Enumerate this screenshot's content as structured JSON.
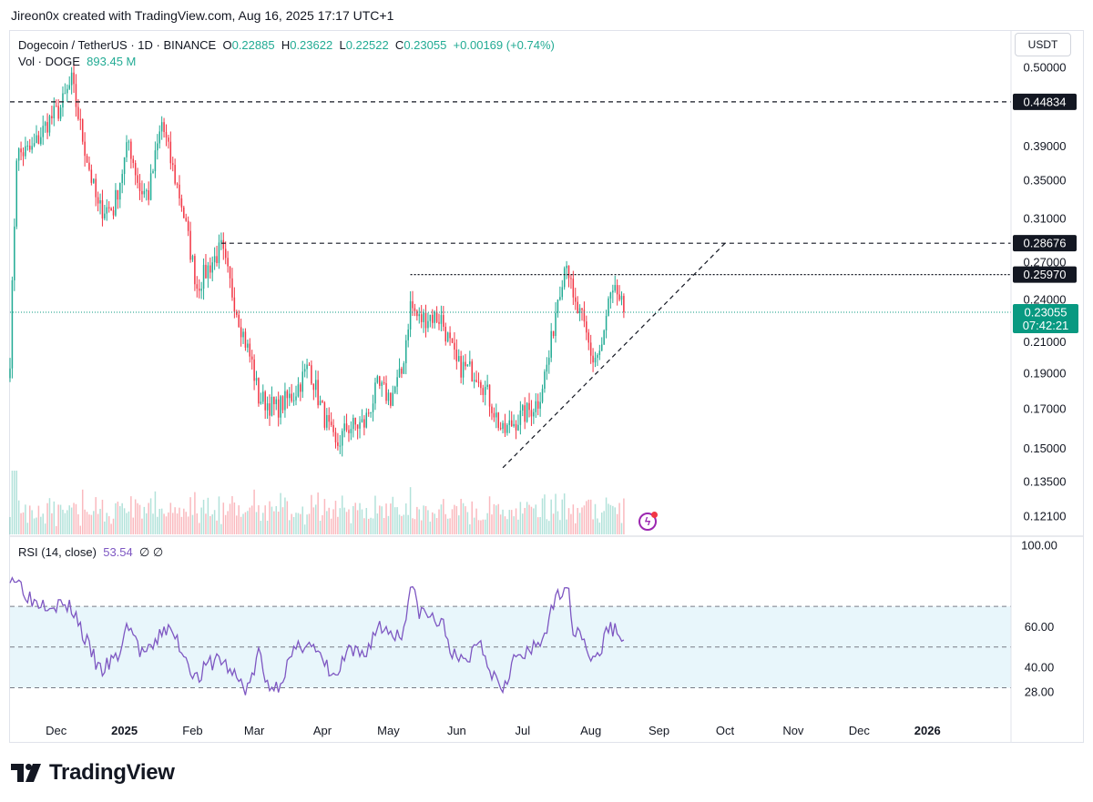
{
  "caption": "Jireon0x created with TradingView.com, Aug 16, 2025 17:17 UTC+1",
  "legend": {
    "symbol": "Dogecoin / TetherUS · 1D · BINANCE",
    "o_label": "O",
    "o": "0.22885",
    "h_label": "H",
    "h": "0.23622",
    "l_label": "L",
    "l": "0.22522",
    "c_label": "C",
    "c": "0.23055",
    "change": "+0.00169 (+0.74%)",
    "vol_label": "Vol · DOGE",
    "vol": "893.45 M"
  },
  "currency_button": "USDT",
  "rsi_legend": {
    "label": "RSI (14, close)",
    "value": "53.54",
    "icons": "∅ ∅"
  },
  "brand": "TradingView",
  "colors": {
    "up": "#22ab94",
    "down": "#f23645",
    "rsi": "#7e57c2",
    "rsi_band": "#e8f6fb",
    "last_price": "#089981",
    "level_tag": "#131722"
  },
  "chart_data": [
    {
      "type": "candlestick",
      "title": "Dogecoin / TetherUS · 1D · BINANCE",
      "y_scale": "log",
      "y_ticks": [
        "0.50000",
        "0.39000",
        "0.35000",
        "0.31000",
        "0.27000",
        "0.24000",
        "0.21000",
        "0.19000",
        "0.17000",
        "0.15000",
        "0.13500",
        "0.12100"
      ],
      "x_ticks": [
        "Dec",
        "2025",
        "Feb",
        "Mar",
        "Apr",
        "May",
        "Jun",
        "Jul",
        "Aug",
        "Sep",
        "Oct",
        "Nov",
        "Dec",
        "2026"
      ],
      "x_tick_dates": [
        "2024-12-01",
        "2025-01-01",
        "2025-02-01",
        "2025-03-01",
        "2025-04-01",
        "2025-05-01",
        "2025-06-01",
        "2025-07-01",
        "2025-08-01",
        "2025-09-01",
        "2025-10-01",
        "2025-11-01",
        "2025-12-01",
        "2026-01-01"
      ],
      "x_range": [
        "2024-11-10",
        "2026-02-08"
      ],
      "last_price": {
        "value": "0.23055",
        "countdown": "07:42:21"
      },
      "price_anchors": [
        [
          "2024-11-10",
          0.2
        ],
        [
          "2024-11-13",
          0.38
        ],
        [
          "2024-11-20",
          0.385
        ],
        [
          "2024-11-27",
          0.42
        ],
        [
          "2024-12-03",
          0.44
        ],
        [
          "2024-12-08",
          0.478
        ],
        [
          "2024-12-13",
          0.4
        ],
        [
          "2024-12-20",
          0.32
        ],
        [
          "2024-12-27",
          0.32
        ],
        [
          "2025-01-03",
          0.395
        ],
        [
          "2025-01-08",
          0.34
        ],
        [
          "2025-01-12",
          0.335
        ],
        [
          "2025-01-18",
          0.42
        ],
        [
          "2025-01-22",
          0.372
        ],
        [
          "2025-01-27",
          0.325
        ],
        [
          "2025-02-03",
          0.25
        ],
        [
          "2025-02-09",
          0.268
        ],
        [
          "2025-02-14",
          0.282
        ],
        [
          "2025-02-18",
          0.252
        ],
        [
          "2025-02-24",
          0.215
        ],
        [
          "2025-02-28",
          0.196
        ],
        [
          "2025-03-03",
          0.176
        ],
        [
          "2025-03-11",
          0.17
        ],
        [
          "2025-03-19",
          0.178
        ],
        [
          "2025-03-26",
          0.195
        ],
        [
          "2025-03-31",
          0.172
        ],
        [
          "2025-04-07",
          0.15
        ],
        [
          "2025-04-12",
          0.16
        ],
        [
          "2025-04-20",
          0.162
        ],
        [
          "2025-04-26",
          0.182
        ],
        [
          "2025-05-02",
          0.176
        ],
        [
          "2025-05-07",
          0.19
        ],
        [
          "2025-05-11",
          0.236
        ],
        [
          "2025-05-15",
          0.225
        ],
        [
          "2025-05-20",
          0.228
        ],
        [
          "2025-05-25",
          0.226
        ],
        [
          "2025-06-01",
          0.195
        ],
        [
          "2025-06-07",
          0.192
        ],
        [
          "2025-06-11",
          0.19
        ],
        [
          "2025-06-17",
          0.172
        ],
        [
          "2025-06-22",
          0.157
        ],
        [
          "2025-06-26",
          0.162
        ],
        [
          "2025-07-03",
          0.168
        ],
        [
          "2025-07-08",
          0.174
        ],
        [
          "2025-07-13",
          0.2
        ],
        [
          "2025-07-17",
          0.243
        ],
        [
          "2025-07-21",
          0.275
        ],
        [
          "2025-07-24",
          0.237
        ],
        [
          "2025-07-28",
          0.225
        ],
        [
          "2025-08-02",
          0.198
        ],
        [
          "2025-08-06",
          0.205
        ],
        [
          "2025-08-09",
          0.237
        ],
        [
          "2025-08-13",
          0.245
        ],
        [
          "2025-08-16",
          0.2305
        ]
      ],
      "horizontal_levels": [
        {
          "price": 0.44834,
          "label": "0.44834",
          "from": "2024-11-10",
          "style": "dashed"
        },
        {
          "price": 0.28676,
          "label": "0.28676",
          "from": "2025-02-14",
          "style": "dashed"
        },
        {
          "price": 0.2597,
          "label": "0.25970",
          "from": "2025-05-11",
          "style": "dotted"
        }
      ],
      "trendline": {
        "from": [
          "2025-06-22",
          0.141
        ],
        "to": [
          "2025-10-01",
          0.28676
        ]
      },
      "volume": {
        "label": "Vol · DOGE",
        "last": "893.45 M"
      }
    },
    {
      "type": "line",
      "title": "RSI (14, close)",
      "value": "53.54",
      "y_ticks": [
        "100.00",
        "60.00",
        "40.00",
        "28.00"
      ],
      "bands": {
        "upper": 70,
        "middle": 50,
        "lower": 30
      },
      "anchors": [
        [
          "2024-11-10",
          86
        ],
        [
          "2024-11-14",
          82
        ],
        [
          "2024-11-20",
          73
        ],
        [
          "2024-11-28",
          72
        ],
        [
          "2024-12-05",
          70
        ],
        [
          "2024-12-09",
          68
        ],
        [
          "2024-12-14",
          54
        ],
        [
          "2024-12-21",
          38
        ],
        [
          "2024-12-29",
          45
        ],
        [
          "2025-01-03",
          62
        ],
        [
          "2025-01-08",
          48
        ],
        [
          "2025-01-13",
          47
        ],
        [
          "2025-01-19",
          60
        ],
        [
          "2025-01-24",
          55
        ],
        [
          "2025-01-29",
          45
        ],
        [
          "2025-02-03",
          34
        ],
        [
          "2025-02-08",
          41
        ],
        [
          "2025-02-13",
          45
        ],
        [
          "2025-02-19",
          37
        ],
        [
          "2025-02-25",
          30
        ],
        [
          "2025-02-28",
          34
        ],
        [
          "2025-03-03",
          48
        ],
        [
          "2025-03-06",
          33
        ],
        [
          "2025-03-11",
          30
        ],
        [
          "2025-03-18",
          45
        ],
        [
          "2025-03-25",
          54
        ],
        [
          "2025-03-31",
          44
        ],
        [
          "2025-04-07",
          34
        ],
        [
          "2025-04-12",
          47
        ],
        [
          "2025-04-20",
          46
        ],
        [
          "2025-04-26",
          60
        ],
        [
          "2025-05-02",
          58
        ],
        [
          "2025-05-07",
          55
        ],
        [
          "2025-05-11",
          80
        ],
        [
          "2025-05-15",
          68
        ],
        [
          "2025-05-21",
          64
        ],
        [
          "2025-05-26",
          60
        ],
        [
          "2025-06-01",
          42
        ],
        [
          "2025-06-07",
          45
        ],
        [
          "2025-06-11",
          55
        ],
        [
          "2025-06-17",
          38
        ],
        [
          "2025-06-22",
          31
        ],
        [
          "2025-06-27",
          44
        ],
        [
          "2025-07-03",
          46
        ],
        [
          "2025-07-09",
          52
        ],
        [
          "2025-07-14",
          66
        ],
        [
          "2025-07-18",
          78
        ],
        [
          "2025-07-21",
          82
        ],
        [
          "2025-07-24",
          60
        ],
        [
          "2025-07-28",
          57
        ],
        [
          "2025-08-02",
          42
        ],
        [
          "2025-08-06",
          50
        ],
        [
          "2025-08-09",
          60
        ],
        [
          "2025-08-13",
          58
        ],
        [
          "2025-08-16",
          53.5
        ]
      ]
    }
  ]
}
